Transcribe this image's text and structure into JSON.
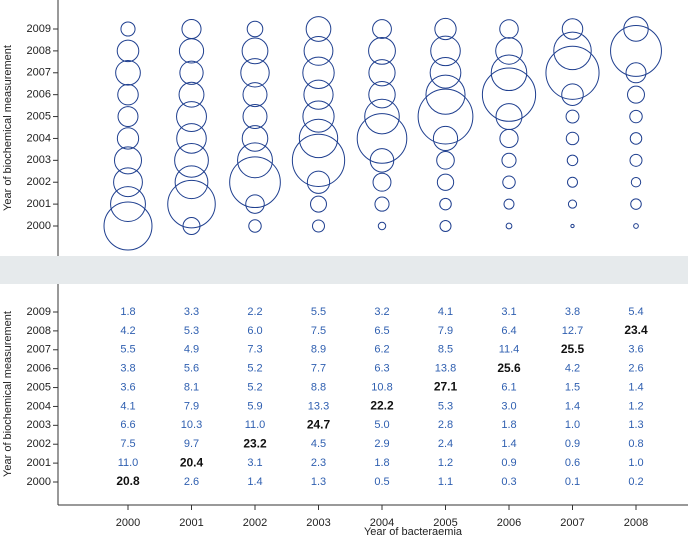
{
  "chart_data": {
    "type": "bubble",
    "x_label": "Year of bacteraemia",
    "y_label": "Year of biochemical measurement",
    "categories": [
      2000,
      2001,
      2002,
      2003,
      2004,
      2005,
      2006,
      2007,
      2008
    ],
    "y_categories": [
      2000,
      2001,
      2002,
      2003,
      2004,
      2005,
      2006,
      2007,
      2008,
      2009
    ],
    "color": "#1f3f8f",
    "label_color": "#2f5fb0",
    "highlight_color": "#111111",
    "values": [
      [
        20.8,
        2.6,
        1.4,
        1.3,
        0.5,
        1.1,
        0.3,
        0.1,
        0.2
      ],
      [
        11.0,
        20.4,
        3.1,
        2.3,
        1.8,
        1.2,
        0.9,
        0.6,
        1.0
      ],
      [
        7.5,
        9.7,
        23.2,
        4.5,
        2.9,
        2.4,
        1.4,
        0.9,
        0.8
      ],
      [
        6.6,
        10.3,
        11.0,
        24.7,
        5.0,
        2.8,
        1.8,
        1.0,
        1.3
      ],
      [
        4.1,
        7.9,
        5.9,
        13.3,
        22.2,
        5.3,
        3.0,
        1.4,
        1.2
      ],
      [
        3.6,
        8.1,
        5.2,
        8.8,
        10.8,
        27.1,
        6.1,
        1.5,
        1.4
      ],
      [
        3.8,
        5.6,
        5.2,
        7.7,
        6.3,
        13.8,
        25.6,
        4.2,
        2.6
      ],
      [
        5.5,
        4.9,
        7.3,
        8.9,
        6.2,
        8.5,
        11.4,
        25.5,
        3.6
      ],
      [
        4.2,
        5.3,
        6.0,
        7.5,
        6.5,
        7.9,
        6.4,
        12.7,
        23.4
      ],
      [
        1.8,
        3.3,
        2.2,
        5.5,
        3.2,
        4.1,
        3.1,
        3.8,
        5.4
      ]
    ],
    "value_labels": [
      [
        "20.8",
        "2.6",
        "1.4",
        "1.3",
        "0.5",
        "1.1",
        "0.3",
        "0.1",
        "0.2"
      ],
      [
        "11.0",
        "20.4",
        "3.1",
        "2.3",
        "1.8",
        "1.2",
        "0.9",
        "0.6",
        "1.0"
      ],
      [
        "7.5",
        "9.7",
        "23.2",
        "4.5",
        "2.9",
        "2.4",
        "1.4",
        "0.9",
        "0.8"
      ],
      [
        "6.6",
        "10.3",
        "11.0",
        "24.7",
        "5.0",
        "2.8",
        "1.8",
        "1.0",
        "1.3"
      ],
      [
        "4.1",
        "7.9",
        "5.9",
        "13.3",
        "22.2",
        "5.3",
        "3.0",
        "1.4",
        "1.2"
      ],
      [
        "3.6",
        "8.1",
        "5.2",
        "8.8",
        "10.8",
        "27.1",
        "6.1",
        "1.5",
        "1.4"
      ],
      [
        "3.8",
        "5.6",
        "5.2",
        "7.7",
        "6.3",
        "13.8",
        "25.6",
        "4.2",
        "2.6"
      ],
      [
        "5.5",
        "4.9",
        "7.3",
        "8.9",
        "6.2",
        "8.5",
        "11.4",
        "25.5",
        "3.6"
      ],
      [
        "4.2",
        "5.3",
        "6.0",
        "7.5",
        "6.5",
        "7.9",
        "6.4",
        "12.7",
        "23.4"
      ],
      [
        "1.8",
        "3.3",
        "2.2",
        "5.5",
        "3.2",
        "4.1",
        "3.1",
        "3.8",
        "5.4"
      ]
    ]
  }
}
